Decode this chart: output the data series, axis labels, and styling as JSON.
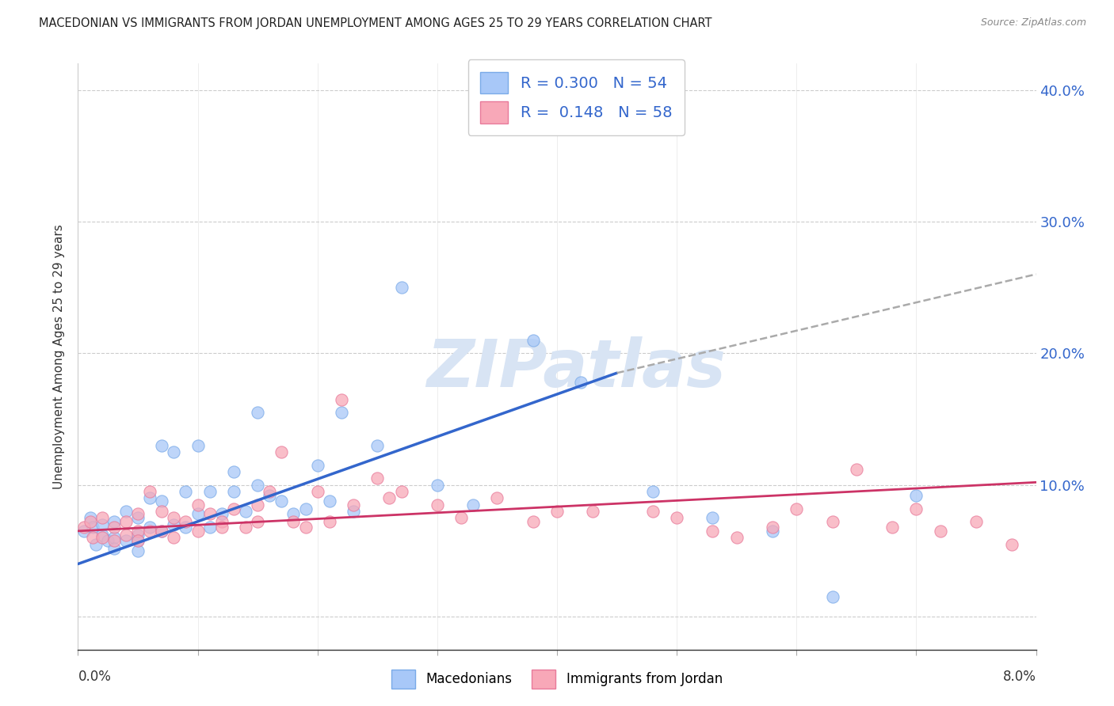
{
  "title": "MACEDONIAN VS IMMIGRANTS FROM JORDAN UNEMPLOYMENT AMONG AGES 25 TO 29 YEARS CORRELATION CHART",
  "source": "Source: ZipAtlas.com",
  "ylabel": "Unemployment Among Ages 25 to 29 years",
  "legend_macedonian": "Macedonians",
  "legend_jordan": "Immigrants from Jordan",
  "r_macedonian": "0.300",
  "n_macedonian": "54",
  "r_jordan": "0.148",
  "n_jordan": "58",
  "macedonian_color": "#a8c8f8",
  "macedonian_edge_color": "#7aaae8",
  "jordan_color": "#f8a8b8",
  "jordan_edge_color": "#e87a9a",
  "macedonian_line_color": "#3366cc",
  "jordan_line_color": "#cc3366",
  "dash_color": "#aaaaaa",
  "watermark_color": "#d8e4f4",
  "grid_color": "#cccccc",
  "xlim": [
    0.0,
    0.08
  ],
  "ylim": [
    -0.025,
    0.42
  ],
  "ytick_values": [
    0.0,
    0.1,
    0.2,
    0.3,
    0.4
  ],
  "ytick_labels_right": [
    "",
    "10.0%",
    "20.0%",
    "30.0%",
    "40.0%"
  ],
  "mac_line_x0": 0.0,
  "mac_line_y0": 0.04,
  "mac_line_x1": 0.045,
  "mac_line_y1": 0.185,
  "dash_line_x0": 0.045,
  "dash_line_y0": 0.185,
  "dash_line_x1": 0.08,
  "dash_line_y1": 0.26,
  "jor_line_x0": 0.0,
  "jor_line_y0": 0.065,
  "jor_line_x1": 0.08,
  "jor_line_y1": 0.102,
  "mac_x": [
    0.0005,
    0.001,
    0.0012,
    0.0015,
    0.002,
    0.002,
    0.0025,
    0.003,
    0.003,
    0.003,
    0.004,
    0.004,
    0.005,
    0.005,
    0.005,
    0.005,
    0.006,
    0.006,
    0.007,
    0.007,
    0.007,
    0.008,
    0.008,
    0.009,
    0.009,
    0.01,
    0.01,
    0.011,
    0.011,
    0.012,
    0.013,
    0.013,
    0.014,
    0.015,
    0.015,
    0.016,
    0.017,
    0.018,
    0.019,
    0.02,
    0.021,
    0.022,
    0.023,
    0.025,
    0.027,
    0.03,
    0.033,
    0.038,
    0.042,
    0.048,
    0.053,
    0.058,
    0.063,
    0.07
  ],
  "mac_y": [
    0.065,
    0.075,
    0.068,
    0.055,
    0.07,
    0.062,
    0.058,
    0.06,
    0.072,
    0.052,
    0.08,
    0.058,
    0.075,
    0.062,
    0.058,
    0.05,
    0.09,
    0.068,
    0.13,
    0.088,
    0.065,
    0.125,
    0.07,
    0.095,
    0.068,
    0.13,
    0.078,
    0.095,
    0.068,
    0.078,
    0.095,
    0.11,
    0.08,
    0.155,
    0.1,
    0.092,
    0.088,
    0.078,
    0.082,
    0.115,
    0.088,
    0.155,
    0.08,
    0.13,
    0.25,
    0.1,
    0.085,
    0.21,
    0.178,
    0.095,
    0.075,
    0.065,
    0.015,
    0.092
  ],
  "jor_x": [
    0.0005,
    0.001,
    0.0012,
    0.002,
    0.002,
    0.003,
    0.003,
    0.004,
    0.004,
    0.005,
    0.005,
    0.005,
    0.006,
    0.006,
    0.007,
    0.007,
    0.008,
    0.008,
    0.009,
    0.01,
    0.01,
    0.011,
    0.012,
    0.012,
    0.013,
    0.014,
    0.015,
    0.015,
    0.016,
    0.017,
    0.018,
    0.019,
    0.02,
    0.021,
    0.022,
    0.023,
    0.025,
    0.026,
    0.027,
    0.03,
    0.032,
    0.035,
    0.038,
    0.04,
    0.043,
    0.048,
    0.05,
    0.053,
    0.055,
    0.058,
    0.06,
    0.063,
    0.065,
    0.068,
    0.07,
    0.072,
    0.075,
    0.078
  ],
  "jor_y": [
    0.068,
    0.072,
    0.06,
    0.075,
    0.06,
    0.068,
    0.058,
    0.072,
    0.062,
    0.078,
    0.065,
    0.058,
    0.095,
    0.065,
    0.08,
    0.065,
    0.075,
    0.06,
    0.072,
    0.085,
    0.065,
    0.078,
    0.072,
    0.068,
    0.082,
    0.068,
    0.085,
    0.072,
    0.095,
    0.125,
    0.072,
    0.068,
    0.095,
    0.072,
    0.165,
    0.085,
    0.105,
    0.09,
    0.095,
    0.085,
    0.075,
    0.09,
    0.072,
    0.08,
    0.08,
    0.08,
    0.075,
    0.065,
    0.06,
    0.068,
    0.082,
    0.072,
    0.112,
    0.068,
    0.082,
    0.065,
    0.072,
    0.055
  ]
}
